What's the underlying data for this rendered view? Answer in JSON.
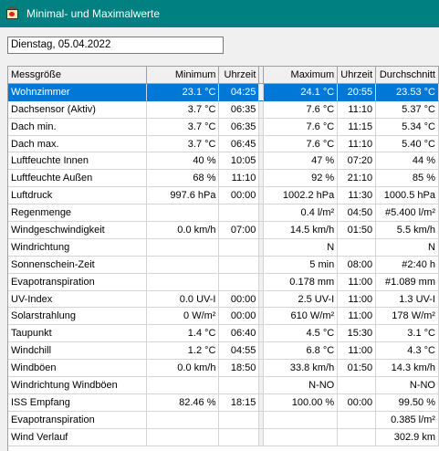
{
  "window": {
    "title": "Minimal- und Maximalwerte",
    "icon": "weather-station-icon"
  },
  "date_field": {
    "value": "Dienstag, 05.04.2022"
  },
  "table": {
    "headers": [
      "Messgröße",
      "Minimum",
      "Uhrzeit",
      "Maximum",
      "Uhrzeit",
      "Durchschnitt"
    ],
    "selected_row": 0,
    "rows": [
      [
        "Wohnzimmer",
        "23.1 °C",
        "04:25",
        "24.1 °C",
        "20:55",
        "23.53 °C"
      ],
      [
        "Dachsensor (Aktiv)",
        "3.7 °C",
        "06:35",
        "7.6 °C",
        "11:10",
        "5.37 °C"
      ],
      [
        "Dach min.",
        "3.7 °C",
        "06:35",
        "7.6 °C",
        "11:15",
        "5.34 °C"
      ],
      [
        "Dach max.",
        "3.7 °C",
        "06:45",
        "7.6 °C",
        "11:10",
        "5.40 °C"
      ],
      [
        "Luftfeuchte Innen",
        "40 %",
        "10:05",
        "47 %",
        "07:20",
        "44 %"
      ],
      [
        "Luftfeuchte Außen",
        "68 %",
        "11:10",
        "92 %",
        "21:10",
        "85 %"
      ],
      [
        "Luftdruck",
        "997.6 hPa",
        "00:00",
        "1002.2 hPa",
        "11:30",
        "1000.5 hPa"
      ],
      [
        "Regenmenge",
        "",
        "",
        "0.4 l/m²",
        "04:50",
        "#5.400 l/m²"
      ],
      [
        "Windgeschwindigkeit",
        "0.0 km/h",
        "07:00",
        "14.5 km/h",
        "01:50",
        "5.5 km/h"
      ],
      [
        "Windrichtung",
        "",
        "",
        "N",
        "",
        "N"
      ],
      [
        "Sonnenschein-Zeit",
        "",
        "",
        "5 min",
        "08:00",
        "#2:40 h"
      ],
      [
        "Evapotranspiration",
        "",
        "",
        "0.178 mm",
        "11:00",
        "#1.089 mm"
      ],
      [
        "UV-Index",
        "0.0 UV-I",
        "00:00",
        "2.5 UV-I",
        "11:00",
        "1.3 UV-I"
      ],
      [
        "Solarstrahlung",
        "0 W/m²",
        "00:00",
        "610 W/m²",
        "11:00",
        "178 W/m²"
      ],
      [
        "Taupunkt",
        "1.4 °C",
        "06:40",
        "4.5 °C",
        "15:30",
        "3.1 °C"
      ],
      [
        "Windchill",
        "1.2 °C",
        "04:55",
        "6.8 °C",
        "11:00",
        "4.3 °C"
      ],
      [
        "Windböen",
        "0.0 km/h",
        "18:50",
        "33.8 km/h",
        "01:50",
        "14.3 km/h"
      ],
      [
        "Windrichtung Windböen",
        "",
        "",
        "N-NO",
        "",
        "N-NO"
      ],
      [
        "ISS Empfang",
        "82.46 %",
        "18:15",
        "100.00 %",
        "00:00",
        "99.50 %"
      ],
      [
        "Evapotranspiration",
        "",
        "",
        "",
        "",
        "0.385 l/m²"
      ],
      [
        "Wind Verlauf",
        "",
        "",
        "",
        "",
        "302.9 km"
      ]
    ]
  }
}
